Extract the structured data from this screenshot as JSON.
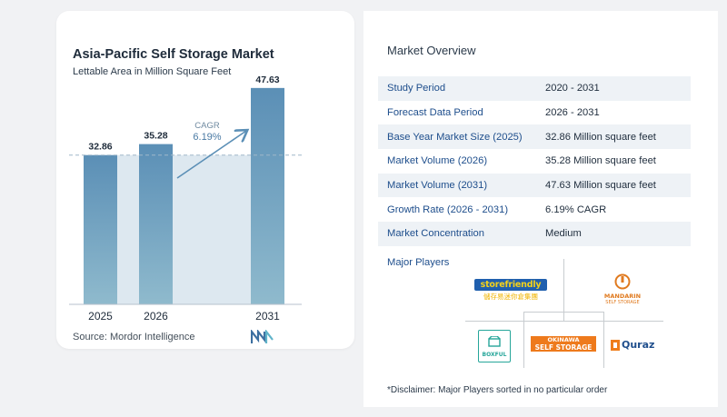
{
  "chart_data": {
    "type": "bar",
    "title": "Asia-Pacific Self Storage Market",
    "subtitle": "Lettable Area in Million Square Feet",
    "categories": [
      "2025",
      "2026",
      "2031"
    ],
    "values": [
      32.86,
      35.28,
      47.63
    ],
    "value_labels": [
      "32.86",
      "35.28",
      "47.63"
    ],
    "annotation": {
      "label": "CAGR",
      "value": "6.19%"
    },
    "reference_line_value": 32.86,
    "xlabel": "",
    "ylabel": "",
    "ylim": [
      0,
      50
    ],
    "grid": false,
    "colors": {
      "bar": "#5b8fb6",
      "bar_light": "#8fbacd",
      "band": "#dde8f0",
      "arrow": "#5b8fb6",
      "cagr_label": "#6f8aa0",
      "cagr_value": "#4a7aa4"
    }
  },
  "source": "Source:  Mordor Intelligence",
  "overview": {
    "title": "Market Overview",
    "rows": [
      {
        "label": "Study Period",
        "value": "2020 - 2031"
      },
      {
        "label": "Forecast Data Period",
        "value": "2026 - 2031"
      },
      {
        "label": "Base Year Market Size (2025)",
        "value": "32.86 Million square feet"
      },
      {
        "label": "Market Volume (2026)",
        "value": "35.28 Million square feet"
      },
      {
        "label": "Market Volume (2031)",
        "value": "47.63 Million square feet"
      },
      {
        "label": "Growth Rate (2026 - 2031)",
        "value": "6.19% CAGR"
      },
      {
        "label": "Market Concentration",
        "value": "Medium"
      }
    ]
  },
  "players": {
    "title": "Major Players",
    "logos": {
      "storefriendly": {
        "name": "storefriendly",
        "sub": "儲存易迷你倉集團"
      },
      "mandarin": {
        "name": "MANDARIN",
        "sub": "SELF STORAGE"
      },
      "boxful": {
        "name": "BOXFUL"
      },
      "okinawa": {
        "name": "OKINAWA",
        "sub": "SELF STORAGE"
      },
      "quraz": {
        "name": "Quraz"
      }
    }
  },
  "disclaimer": "*Disclaimer: Major Players sorted in no particular order"
}
